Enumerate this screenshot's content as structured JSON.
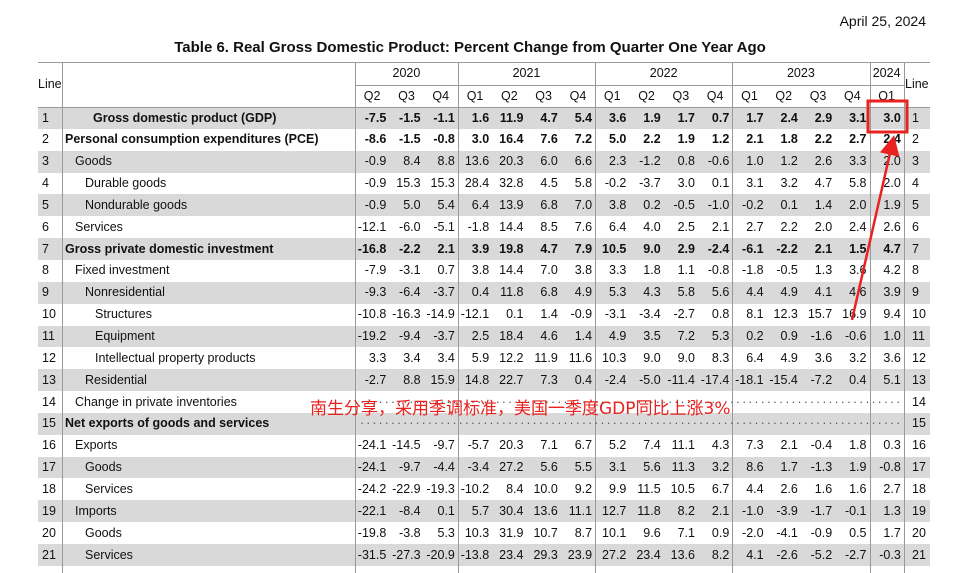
{
  "header": {
    "date": "April 25, 2024",
    "title": "Table 6. Real Gross Domestic Product: Percent Change from Quarter One Year Ago"
  },
  "table": {
    "line_header": "Line",
    "years": [
      "2020",
      "2021",
      "2022",
      "2023",
      "2024"
    ],
    "quarters": [
      "Q2",
      "Q3",
      "Q4",
      "Q1",
      "Q2",
      "Q3",
      "Q4",
      "Q1",
      "Q2",
      "Q3",
      "Q4",
      "Q1",
      "Q2",
      "Q3",
      "Q4",
      "Q1"
    ],
    "rows": [
      {
        "line": "1",
        "label": "Gross domestic product (GDP)",
        "values": [
          "-7.5",
          "-1.5",
          "-1.1",
          "1.6",
          "11.9",
          "4.7",
          "5.4",
          "3.6",
          "1.9",
          "1.7",
          "0.7",
          "1.7",
          "2.4",
          "2.9",
          "3.1",
          "3.0"
        ]
      },
      {
        "line": "2",
        "label": "Personal consumption expenditures (PCE)",
        "values": [
          "-8.6",
          "-1.5",
          "-0.8",
          "3.0",
          "16.4",
          "7.6",
          "7.2",
          "5.0",
          "2.2",
          "1.9",
          "1.2",
          "2.1",
          "1.8",
          "2.2",
          "2.7",
          "2.4"
        ]
      },
      {
        "line": "3",
        "label": "Goods",
        "values": [
          "-0.9",
          "8.4",
          "8.8",
          "13.6",
          "20.3",
          "6.0",
          "6.6",
          "2.3",
          "-1.2",
          "0.8",
          "-0.6",
          "1.0",
          "1.2",
          "2.6",
          "3.3",
          "2.0"
        ]
      },
      {
        "line": "4",
        "label": "Durable goods",
        "values": [
          "-0.9",
          "15.3",
          "15.3",
          "28.4",
          "32.8",
          "4.5",
          "5.8",
          "-0.2",
          "-3.7",
          "3.0",
          "0.1",
          "3.1",
          "3.2",
          "4.7",
          "5.8",
          "2.0"
        ]
      },
      {
        "line": "5",
        "label": "Nondurable goods",
        "values": [
          "-0.9",
          "5.0",
          "5.4",
          "6.4",
          "13.9",
          "6.8",
          "7.0",
          "3.8",
          "0.2",
          "-0.5",
          "-1.0",
          "-0.2",
          "0.1",
          "1.4",
          "2.0",
          "1.9"
        ]
      },
      {
        "line": "6",
        "label": "Services",
        "values": [
          "-12.1",
          "-6.0",
          "-5.1",
          "-1.8",
          "14.4",
          "8.5",
          "7.6",
          "6.4",
          "4.0",
          "2.5",
          "2.1",
          "2.7",
          "2.2",
          "2.0",
          "2.4",
          "2.6"
        ]
      },
      {
        "line": "7",
        "label": "Gross private domestic investment",
        "values": [
          "-16.8",
          "-2.2",
          "2.1",
          "3.9",
          "19.8",
          "4.7",
          "7.9",
          "10.5",
          "9.0",
          "2.9",
          "-2.4",
          "-6.1",
          "-2.2",
          "2.1",
          "1.5",
          "4.7"
        ]
      },
      {
        "line": "8",
        "label": "Fixed investment",
        "values": [
          "-7.9",
          "-3.1",
          "0.7",
          "3.8",
          "14.4",
          "7.0",
          "3.8",
          "3.3",
          "1.8",
          "1.1",
          "-0.8",
          "-1.8",
          "-0.5",
          "1.3",
          "3.6",
          "4.2"
        ]
      },
      {
        "line": "9",
        "label": "Nonresidential",
        "values": [
          "-9.3",
          "-6.4",
          "-3.7",
          "0.4",
          "11.8",
          "6.8",
          "4.9",
          "5.3",
          "4.3",
          "5.8",
          "5.6",
          "4.4",
          "4.9",
          "4.1",
          "4.6",
          "3.9"
        ]
      },
      {
        "line": "10",
        "label": "Structures",
        "values": [
          "-10.8",
          "-16.3",
          "-14.9",
          "-12.1",
          "0.1",
          "1.4",
          "-0.9",
          "-3.1",
          "-3.4",
          "-2.7",
          "0.8",
          "8.1",
          "12.3",
          "15.7",
          "16.9",
          "9.4"
        ]
      },
      {
        "line": "11",
        "label": "Equipment",
        "values": [
          "-19.2",
          "-9.4",
          "-3.7",
          "2.5",
          "18.4",
          "4.6",
          "1.4",
          "4.9",
          "3.5",
          "7.2",
          "5.3",
          "0.2",
          "0.9",
          "-1.6",
          "-0.6",
          "1.0"
        ]
      },
      {
        "line": "12",
        "label": "Intellectual property products",
        "values": [
          "3.3",
          "3.4",
          "3.4",
          "5.9",
          "12.2",
          "11.9",
          "11.6",
          "10.3",
          "9.0",
          "9.0",
          "8.3",
          "6.4",
          "4.9",
          "3.6",
          "3.2",
          "3.6"
        ]
      },
      {
        "line": "13",
        "label": "Residential",
        "values": [
          "-2.7",
          "8.8",
          "15.9",
          "14.8",
          "22.7",
          "7.3",
          "0.4",
          "-2.4",
          "-5.0",
          "-11.4",
          "-17.4",
          "-18.1",
          "-15.4",
          "-7.2",
          "0.4",
          "5.1"
        ]
      },
      {
        "line": "14",
        "label": "Change in private inventories",
        "values": []
      },
      {
        "line": "15",
        "label": "Net exports of goods and services",
        "values": []
      },
      {
        "line": "16",
        "label": "Exports",
        "values": [
          "-24.1",
          "-14.5",
          "-9.7",
          "-5.7",
          "20.3",
          "7.1",
          "6.7",
          "5.2",
          "7.4",
          "11.1",
          "4.3",
          "7.3",
          "2.1",
          "-0.4",
          "1.8",
          "0.3"
        ]
      },
      {
        "line": "17",
        "label": "Goods",
        "values": [
          "-24.1",
          "-9.7",
          "-4.4",
          "-3.4",
          "27.2",
          "5.6",
          "5.5",
          "3.1",
          "5.6",
          "11.3",
          "3.2",
          "8.6",
          "1.7",
          "-1.3",
          "1.9",
          "-0.8"
        ]
      },
      {
        "line": "18",
        "label": "Services",
        "values": [
          "-24.2",
          "-22.9",
          "-19.3",
          "-10.2",
          "8.4",
          "10.0",
          "9.2",
          "9.9",
          "11.5",
          "10.5",
          "6.7",
          "4.4",
          "2.6",
          "1.6",
          "1.6",
          "2.7"
        ]
      },
      {
        "line": "19",
        "label": "Imports",
        "values": [
          "-22.1",
          "-8.4",
          "0.1",
          "5.7",
          "30.4",
          "13.6",
          "11.1",
          "12.7",
          "11.8",
          "8.2",
          "2.1",
          "-1.0",
          "-3.9",
          "-1.7",
          "-0.1",
          "1.3"
        ]
      },
      {
        "line": "20",
        "label": "Goods",
        "values": [
          "-19.8",
          "-3.8",
          "5.3",
          "10.3",
          "31.9",
          "10.7",
          "8.7",
          "10.1",
          "9.6",
          "7.1",
          "0.9",
          "-2.0",
          "-4.1",
          "-0.9",
          "0.5",
          "1.7"
        ]
      },
      {
        "line": "21",
        "label": "Services",
        "values": [
          "-31.5",
          "-27.3",
          "-20.9",
          "-13.8",
          "23.4",
          "29.3",
          "23.9",
          "27.2",
          "23.4",
          "13.6",
          "8.2",
          "4.1",
          "-2.6",
          "-5.2",
          "-2.7",
          "-0.3"
        ]
      }
    ]
  },
  "annotation": {
    "text": "南生分享，采用季调标准，美国一季度GDP同比上涨3%"
  }
}
